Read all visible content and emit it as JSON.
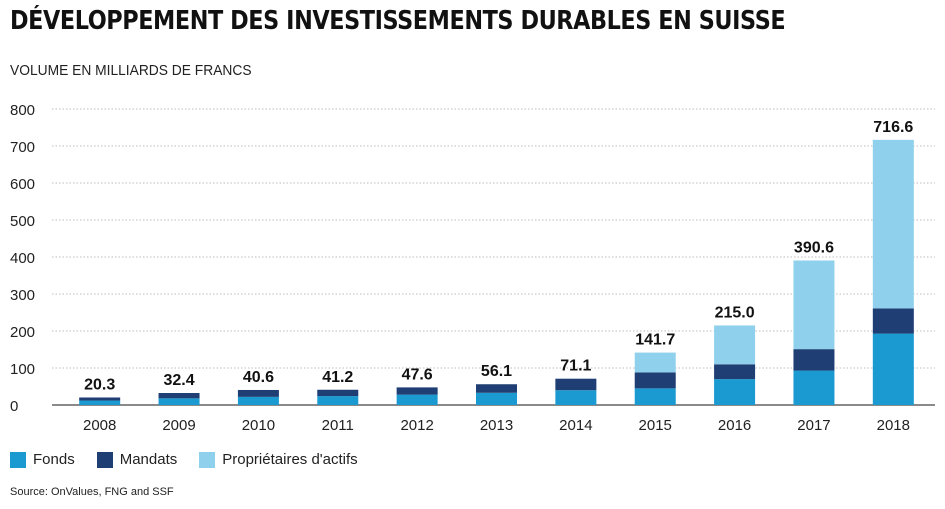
{
  "title": "DÉVELOPPEMENT DES INVESTISSEMENTS DURABLES EN SUISSE",
  "subtitle": "VOLUME EN MILLIARDS DE FRANCS",
  "source": "Source: OnValues, FNG and SSF",
  "colors": {
    "fonds": "#1a9ad0",
    "mandats": "#1f3e73",
    "proprietaires": "#8fd1ec",
    "grid": "#bdbdbd"
  },
  "chart_data": {
    "type": "bar",
    "stacked": true,
    "categories": [
      "2008",
      "2009",
      "2010",
      "2011",
      "2012",
      "2013",
      "2014",
      "2015",
      "2016",
      "2017",
      "2018"
    ],
    "series": [
      {
        "name": "Fonds",
        "color": "#1a9ad0",
        "values": [
          12,
          18,
          22,
          24,
          28,
          33,
          40,
          45,
          70,
          93,
          193
        ]
      },
      {
        "name": "Mandats",
        "color": "#1f3e73",
        "values": [
          8.3,
          14.4,
          18.6,
          17.2,
          19.6,
          23.1,
          31.1,
          43,
          40,
          58,
          68
        ]
      },
      {
        "name": "Propriétaires d'actifs",
        "color": "#8fd1ec",
        "values": [
          0,
          0,
          0,
          0,
          0,
          0,
          0,
          53.7,
          105,
          239.6,
          455.6
        ]
      }
    ],
    "totals": [
      "20.3",
      "32.4",
      "40.6",
      "41.2",
      "47.6",
      "56.1",
      "71.1",
      "141.7",
      "215.0",
      "390.6",
      "716.6"
    ],
    "yticks": [
      0,
      100,
      200,
      300,
      400,
      500,
      600,
      700,
      800
    ],
    "ylim": [
      0,
      800
    ],
    "grid": true,
    "legend_position": "bottom-left"
  }
}
